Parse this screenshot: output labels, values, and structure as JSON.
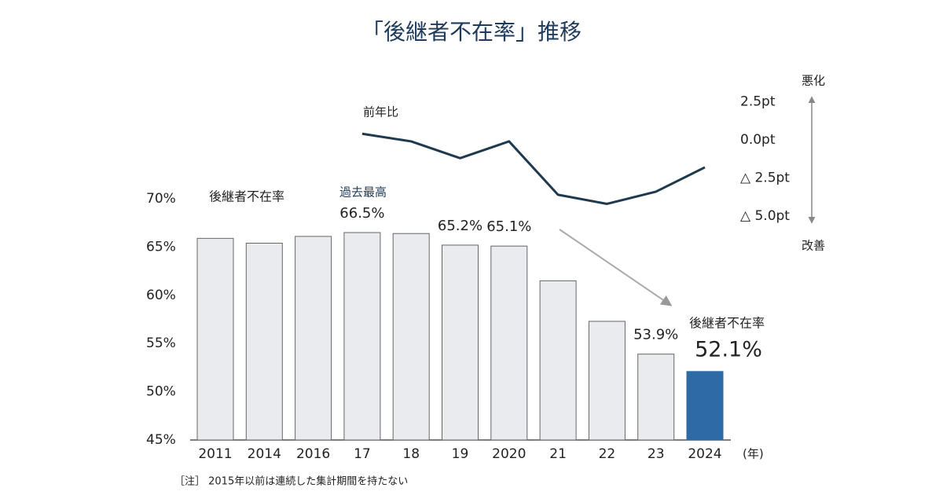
{
  "chart_data": {
    "type": "bar",
    "title": "「後継者不在率」推移",
    "categories": [
      "2011",
      "2014",
      "2016",
      "17",
      "18",
      "19",
      "2020",
      "21",
      "22",
      "23",
      "2024"
    ],
    "x_unit": "(年)",
    "ylim": [
      45,
      70
    ],
    "yticks": [
      {
        "value": 45,
        "label": "45%"
      },
      {
        "value": 50,
        "label": "50%"
      },
      {
        "value": 55,
        "label": "55%"
      },
      {
        "value": 60,
        "label": "60%"
      },
      {
        "value": 65,
        "label": "65%"
      },
      {
        "value": 70,
        "label": "70%"
      }
    ],
    "y2lim": [
      -5,
      2.5
    ],
    "y2ticks": [
      {
        "value": 2.5,
        "label": "2.5pt"
      },
      {
        "value": 0,
        "label": "0.0pt"
      },
      {
        "value": -2.5,
        "label": "△ 2.5pt"
      },
      {
        "value": -5,
        "label": "△ 5.0pt"
      }
    ],
    "y2_top_label": "悪化",
    "y2_bottom_label": "改善",
    "series": [
      {
        "name": "後継者不在率",
        "type": "bar",
        "colors": [
          "#e9ebee",
          "#e9ebee",
          "#e9ebee",
          "#e9ebee",
          "#e9ebee",
          "#e9ebee",
          "#e9ebee",
          "#e9ebee",
          "#e9ebee",
          "#e9ebee",
          "#2e6aa6"
        ],
        "values": [
          65.9,
          65.4,
          66.1,
          66.5,
          66.4,
          65.2,
          65.1,
          61.5,
          57.3,
          53.9,
          52.1
        ],
        "value_labels": [
          null,
          null,
          null,
          "66.5%",
          null,
          "65.2%",
          "65.1%",
          null,
          null,
          "53.9%",
          "52.1%"
        ]
      },
      {
        "name": "前年比",
        "type": "line",
        "axis": "y2",
        "color": "#1f3a4f",
        "values": [
          null,
          null,
          null,
          0.4,
          -0.1,
          -1.2,
          -0.1,
          -3.6,
          -4.2,
          -3.4,
          -1.8
        ]
      }
    ],
    "annotations": [
      "過去最高",
      "後継者不在率"
    ],
    "note": "［注］ 2015年以前は連続した集計期間を持たない"
  }
}
